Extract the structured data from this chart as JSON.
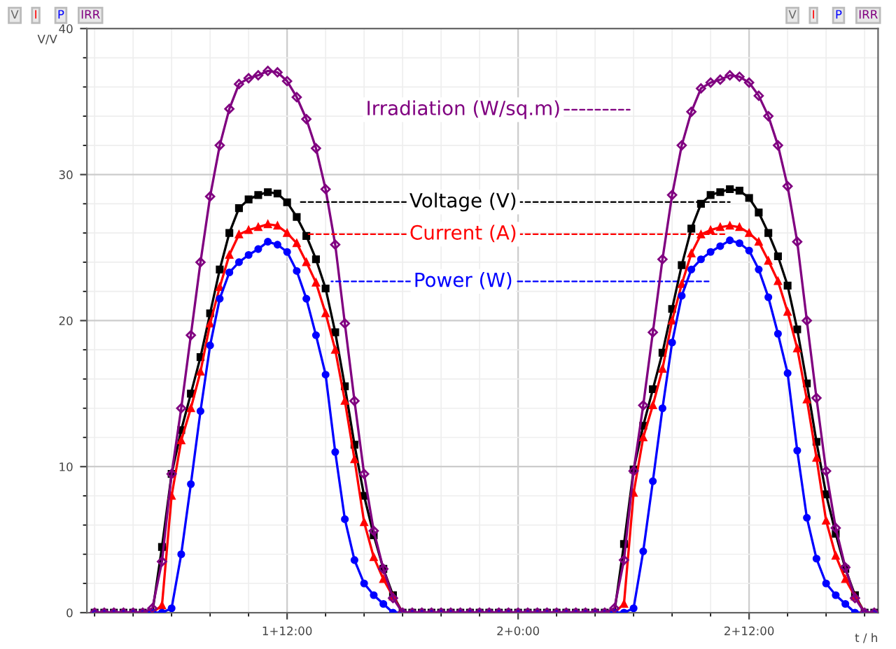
{
  "chart_data": {
    "type": "line",
    "ylabel": "V/V",
    "xlabel": "t / h",
    "categories": [
      null,
      null,
      null,
      null,
      null,
      null,
      null,
      null,
      null,
      null,
      null,
      null,
      null,
      null,
      null,
      null,
      null,
      null,
      null,
      null,
      "1+12:00",
      null,
      null,
      null,
      null,
      null,
      null,
      null,
      null,
      null,
      null,
      null,
      null,
      null,
      null,
      null,
      null,
      null,
      null,
      null,
      null,
      null,
      null,
      null,
      "2+0:00",
      null,
      null,
      null,
      null,
      null,
      null,
      null,
      null,
      null,
      null,
      null,
      null,
      null,
      null,
      null,
      null,
      null,
      null,
      null,
      null,
      null,
      null,
      null,
      "2+12:00",
      null,
      null,
      null,
      null,
      null,
      null,
      null,
      null,
      null,
      null,
      null,
      null,
      null
    ],
    "ylim": [
      0,
      40
    ],
    "yticks": [
      0,
      10,
      20,
      30,
      40
    ],
    "grid": true,
    "annotations": [
      "V",
      "I",
      "P",
      "IRR",
      "V",
      "I",
      "P",
      "IRR"
    ],
    "series": [
      {
        "name": "Voltage (V)",
        "color": "#000000",
        "marker": "square",
        "values": [
          0,
          0,
          0,
          0,
          0,
          0,
          0,
          4.5,
          9.5,
          12.5,
          15,
          17.5,
          20.5,
          23.5,
          26,
          27.7,
          28.3,
          28.6,
          28.8,
          28.7,
          28.1,
          27.1,
          25.8,
          24.2,
          22.2,
          19.2,
          15.5,
          11.5,
          8,
          5.3,
          3,
          1.2,
          0,
          0,
          0,
          0,
          0,
          0,
          0,
          0,
          0,
          0,
          0,
          0,
          0,
          0,
          0,
          0,
          0,
          0,
          0,
          0,
          0,
          0,
          0,
          4.7,
          9.8,
          12.8,
          15.3,
          17.8,
          20.8,
          23.8,
          26.3,
          28,
          28.6,
          28.8,
          29,
          28.9,
          28.4,
          27.4,
          26,
          24.4,
          22.4,
          19.4,
          15.7,
          11.7,
          8.1,
          5.4,
          3,
          1.2,
          0,
          0
        ]
      },
      {
        "name": "Current (A)",
        "color": "#ff0000",
        "marker": "triangle",
        "values": [
          null,
          null,
          null,
          null,
          null,
          0,
          0,
          0.5,
          8,
          11.8,
          14,
          16.5,
          19.8,
          22.3,
          24.5,
          25.9,
          26.2,
          26.4,
          26.6,
          26.5,
          26,
          25.3,
          24,
          22.6,
          20.5,
          18,
          14.5,
          10.5,
          6.2,
          3.8,
          2.3,
          1.1,
          0,
          0,
          0,
          0,
          0,
          0,
          0,
          0,
          0,
          0,
          0,
          0,
          0,
          0,
          0,
          0,
          0,
          0,
          0,
          0,
          0,
          0,
          0,
          0.6,
          8.2,
          12,
          14.2,
          16.7,
          20,
          22.5,
          24.6,
          25.9,
          26.2,
          26.4,
          26.5,
          26.4,
          26,
          25.4,
          24.1,
          22.7,
          20.6,
          18.1,
          14.6,
          10.6,
          6.3,
          3.9,
          2.3,
          1.1,
          0,
          0
        ]
      },
      {
        "name": "Power (W)",
        "color": "#0000ff",
        "marker": "circle",
        "values": [
          0,
          0,
          0,
          0,
          0,
          0,
          0,
          0,
          0.3,
          4,
          8.8,
          13.8,
          18.3,
          21.5,
          23.3,
          24,
          24.5,
          24.9,
          25.4,
          25.2,
          24.7,
          23.4,
          21.5,
          19,
          16.3,
          11,
          6.4,
          3.6,
          2,
          1.2,
          0.6,
          0,
          0,
          0,
          0,
          0,
          0,
          0,
          0,
          0,
          0,
          0,
          0,
          0,
          0,
          0,
          0,
          0,
          0,
          0,
          0,
          0,
          0,
          0,
          0,
          0,
          0.3,
          4.2,
          9,
          14,
          18.5,
          21.7,
          23.5,
          24.2,
          24.7,
          25.1,
          25.5,
          25.3,
          24.8,
          23.5,
          21.6,
          19.1,
          16.4,
          11.1,
          6.5,
          3.7,
          2,
          1.2,
          0.6,
          0,
          0,
          0
        ]
      },
      {
        "name": "Irradiation (W/sq.m)",
        "color": "#800080",
        "marker": "diamond",
        "values": [
          0,
          0,
          0,
          0,
          0,
          0,
          0.3,
          3.5,
          9.5,
          14,
          19,
          24,
          28.5,
          32,
          34.5,
          36.2,
          36.6,
          36.8,
          37.1,
          37,
          36.4,
          35.3,
          33.8,
          31.8,
          29,
          25.2,
          19.8,
          14.5,
          9.5,
          5.6,
          3,
          1,
          0,
          0,
          0,
          0,
          0,
          0,
          0,
          0,
          0,
          0,
          0,
          0,
          0,
          0,
          0,
          0,
          0,
          0,
          0,
          0,
          0,
          0,
          0.3,
          3.6,
          9.7,
          14.2,
          19.2,
          24.2,
          28.6,
          32,
          34.3,
          35.9,
          36.3,
          36.5,
          36.8,
          36.7,
          36.3,
          35.4,
          34,
          32,
          29.2,
          25.4,
          20,
          14.7,
          9.7,
          5.8,
          3.1,
          1,
          0,
          0
        ]
      }
    ]
  }
}
